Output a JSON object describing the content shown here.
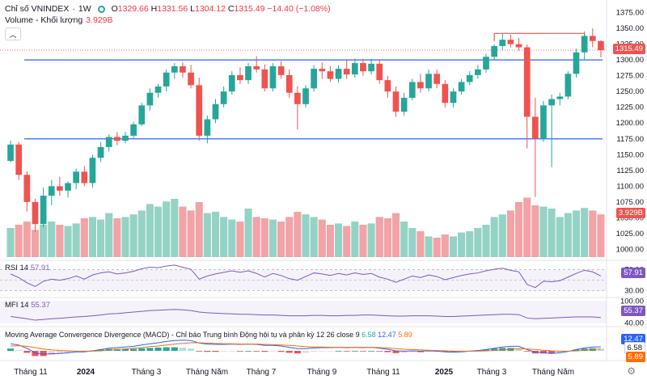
{
  "header": {
    "symbol": "Chỉ số VNINDEX",
    "interval": "1W",
    "ohlc": {
      "o_label": "O",
      "o": "1329.66",
      "h_label": "H",
      "h": "1331.56",
      "l_label": "L",
      "l": "1304.12",
      "c_label": "C",
      "c": "1315.49",
      "change": "−14.40 (−1.08%)"
    },
    "volume_label": "Volume - Khối lượng",
    "volume_value": "3.929B"
  },
  "colors": {
    "up": "#26a69a",
    "down": "#ef5350",
    "vol_up": "#95d2c6",
    "vol_down": "#f1a3a7",
    "hline": "#2962ff",
    "rsi": "#7e57c2",
    "macd": "#2962ff",
    "signal": "#ff6d00"
  },
  "price_axis": {
    "ticks": [
      "1375.00",
      "1350.00",
      "1325.00",
      "1300.00",
      "1275.00",
      "1250.00",
      "1225.00",
      "1200.00",
      "1175.00",
      "1150.00",
      "1125.00",
      "1100.00",
      "1075.00",
      "1050.00",
      "1025.00",
      "1000.00"
    ],
    "last_price": "1315.49",
    "volume_tag": "3.929B"
  },
  "time_axis": {
    "labels": [
      "Tháng 11",
      "2024",
      "Tháng 3",
      "Tháng Năm",
      "Tháng 7",
      "Tháng 9",
      "Tháng 11",
      "2025",
      "Tháng 3",
      "Tháng Năm"
    ]
  },
  "rsi": {
    "label": "RSI",
    "period": "14",
    "value": "57.91",
    "ticks": [
      "70.00",
      "30.00"
    ]
  },
  "mfi": {
    "label": "MFI",
    "period": "14",
    "value": "55.37",
    "ticks": [
      "100.00",
      "40.00"
    ]
  },
  "macd": {
    "label": "Moving Average Convergence Divergence (MACD) - Chỉ báo Trung bình Động hội tụ và phân kỳ",
    "params": "12 26 close 9",
    "hist": "6.58",
    "macd": "12.47",
    "signal": "5.89",
    "tag_macd": "12.47",
    "tag_hist": "6.58",
    "tag_signal": "5.89"
  },
  "chart_data": {
    "type": "candlestick",
    "title": "Chỉ số VNINDEX · 1W",
    "ylim": [
      990,
      1380
    ],
    "horizontal_lines": [
      1300,
      1175
    ],
    "candles": [
      {
        "o": 1140,
        "h": 1172,
        "l": 1138,
        "c": 1166
      },
      {
        "o": 1166,
        "h": 1170,
        "l": 1110,
        "c": 1118
      },
      {
        "o": 1118,
        "h": 1124,
        "l": 1060,
        "c": 1075
      },
      {
        "o": 1075,
        "h": 1080,
        "l": 1027,
        "c": 1040
      },
      {
        "o": 1040,
        "h": 1098,
        "l": 1035,
        "c": 1085
      },
      {
        "o": 1085,
        "h": 1110,
        "l": 1070,
        "c": 1100
      },
      {
        "o": 1100,
        "h": 1115,
        "l": 1085,
        "c": 1093
      },
      {
        "o": 1093,
        "h": 1108,
        "l": 1082,
        "c": 1105
      },
      {
        "o": 1105,
        "h": 1128,
        "l": 1095,
        "c": 1123
      },
      {
        "o": 1123,
        "h": 1132,
        "l": 1100,
        "c": 1105
      },
      {
        "o": 1105,
        "h": 1150,
        "l": 1098,
        "c": 1145
      },
      {
        "o": 1145,
        "h": 1170,
        "l": 1138,
        "c": 1162
      },
      {
        "o": 1162,
        "h": 1182,
        "l": 1155,
        "c": 1178
      },
      {
        "o": 1178,
        "h": 1186,
        "l": 1165,
        "c": 1172
      },
      {
        "o": 1172,
        "h": 1186,
        "l": 1168,
        "c": 1180
      },
      {
        "o": 1180,
        "h": 1202,
        "l": 1175,
        "c": 1198
      },
      {
        "o": 1198,
        "h": 1232,
        "l": 1195,
        "c": 1228
      },
      {
        "o": 1228,
        "h": 1255,
        "l": 1220,
        "c": 1248
      },
      {
        "o": 1248,
        "h": 1262,
        "l": 1240,
        "c": 1258
      },
      {
        "o": 1258,
        "h": 1285,
        "l": 1250,
        "c": 1280
      },
      {
        "o": 1280,
        "h": 1295,
        "l": 1270,
        "c": 1290
      },
      {
        "o": 1290,
        "h": 1296,
        "l": 1272,
        "c": 1280
      },
      {
        "o": 1280,
        "h": 1292,
        "l": 1255,
        "c": 1260
      },
      {
        "o": 1260,
        "h": 1272,
        "l": 1172,
        "c": 1180
      },
      {
        "o": 1180,
        "h": 1212,
        "l": 1168,
        "c": 1206
      },
      {
        "o": 1206,
        "h": 1238,
        "l": 1200,
        "c": 1230
      },
      {
        "o": 1230,
        "h": 1258,
        "l": 1225,
        "c": 1250
      },
      {
        "o": 1250,
        "h": 1282,
        "l": 1245,
        "c": 1276
      },
      {
        "o": 1276,
        "h": 1288,
        "l": 1262,
        "c": 1268
      },
      {
        "o": 1268,
        "h": 1295,
        "l": 1262,
        "c": 1290
      },
      {
        "o": 1290,
        "h": 1306,
        "l": 1280,
        "c": 1285
      },
      {
        "o": 1285,
        "h": 1293,
        "l": 1250,
        "c": 1255
      },
      {
        "o": 1255,
        "h": 1295,
        "l": 1250,
        "c": 1290
      },
      {
        "o": 1290,
        "h": 1298,
        "l": 1270,
        "c": 1276
      },
      {
        "o": 1276,
        "h": 1285,
        "l": 1240,
        "c": 1248
      },
      {
        "o": 1248,
        "h": 1258,
        "l": 1190,
        "c": 1230
      },
      {
        "o": 1230,
        "h": 1260,
        "l": 1225,
        "c": 1255
      },
      {
        "o": 1255,
        "h": 1292,
        "l": 1250,
        "c": 1286
      },
      {
        "o": 1286,
        "h": 1296,
        "l": 1270,
        "c": 1282
      },
      {
        "o": 1282,
        "h": 1290,
        "l": 1265,
        "c": 1270
      },
      {
        "o": 1270,
        "h": 1292,
        "l": 1264,
        "c": 1286
      },
      {
        "o": 1286,
        "h": 1300,
        "l": 1270,
        "c": 1277
      },
      {
        "o": 1277,
        "h": 1302,
        "l": 1272,
        "c": 1295
      },
      {
        "o": 1295,
        "h": 1302,
        "l": 1275,
        "c": 1282
      },
      {
        "o": 1282,
        "h": 1302,
        "l": 1277,
        "c": 1294
      },
      {
        "o": 1294,
        "h": 1300,
        "l": 1262,
        "c": 1268
      },
      {
        "o": 1268,
        "h": 1275,
        "l": 1240,
        "c": 1250
      },
      {
        "o": 1250,
        "h": 1258,
        "l": 1210,
        "c": 1218
      },
      {
        "o": 1218,
        "h": 1248,
        "l": 1212,
        "c": 1240
      },
      {
        "o": 1240,
        "h": 1270,
        "l": 1236,
        "c": 1265
      },
      {
        "o": 1265,
        "h": 1278,
        "l": 1248,
        "c": 1255
      },
      {
        "o": 1255,
        "h": 1285,
        "l": 1250,
        "c": 1278
      },
      {
        "o": 1278,
        "h": 1285,
        "l": 1255,
        "c": 1262
      },
      {
        "o": 1262,
        "h": 1268,
        "l": 1225,
        "c": 1232
      },
      {
        "o": 1232,
        "h": 1255,
        "l": 1225,
        "c": 1250
      },
      {
        "o": 1250,
        "h": 1270,
        "l": 1245,
        "c": 1265
      },
      {
        "o": 1265,
        "h": 1282,
        "l": 1260,
        "c": 1276
      },
      {
        "o": 1276,
        "h": 1292,
        "l": 1270,
        "c": 1285
      },
      {
        "o": 1285,
        "h": 1310,
        "l": 1280,
        "c": 1305
      },
      {
        "o": 1305,
        "h": 1325,
        "l": 1300,
        "c": 1322
      },
      {
        "o": 1322,
        "h": 1342,
        "l": 1315,
        "c": 1332
      },
      {
        "o": 1332,
        "h": 1340,
        "l": 1320,
        "c": 1325
      },
      {
        "o": 1325,
        "h": 1335,
        "l": 1315,
        "c": 1320
      },
      {
        "o": 1320,
        "h": 1325,
        "l": 1160,
        "c": 1210
      },
      {
        "o": 1210,
        "h": 1240,
        "l": 1083,
        "c": 1175
      },
      {
        "o": 1175,
        "h": 1235,
        "l": 1170,
        "c": 1228
      },
      {
        "o": 1228,
        "h": 1245,
        "l": 1130,
        "c": 1238
      },
      {
        "o": 1238,
        "h": 1248,
        "l": 1228,
        "c": 1242
      },
      {
        "o": 1242,
        "h": 1282,
        "l": 1238,
        "c": 1278
      },
      {
        "o": 1278,
        "h": 1318,
        "l": 1272,
        "c": 1312
      },
      {
        "o": 1312,
        "h": 1345,
        "l": 1300,
        "c": 1338
      },
      {
        "o": 1338,
        "h": 1350,
        "l": 1320,
        "c": 1330
      },
      {
        "o": 1329.66,
        "h": 1331.56,
        "l": 1304.12,
        "c": 1315.49
      }
    ],
    "volume_max": 1.0,
    "volume": [
      0.45,
      0.5,
      0.55,
      0.42,
      0.5,
      0.55,
      0.5,
      0.48,
      0.52,
      0.6,
      0.62,
      0.58,
      0.68,
      0.6,
      0.62,
      0.66,
      0.72,
      0.82,
      0.78,
      0.86,
      0.9,
      0.78,
      0.72,
      0.85,
      0.68,
      0.7,
      0.62,
      0.58,
      0.55,
      0.75,
      0.62,
      0.6,
      0.58,
      0.55,
      0.62,
      0.7,
      0.66,
      0.62,
      0.58,
      0.5,
      0.52,
      0.48,
      0.55,
      0.5,
      0.52,
      0.62,
      0.6,
      0.68,
      0.55,
      0.45,
      0.4,
      0.32,
      0.3,
      0.35,
      0.32,
      0.38,
      0.4,
      0.45,
      0.5,
      0.62,
      0.66,
      0.72,
      0.85,
      0.92,
      0.8,
      0.78,
      0.75,
      0.62,
      0.68,
      0.72,
      0.76,
      0.72,
      0.66
    ],
    "rsi": [
      62,
      55,
      45,
      38,
      48,
      52,
      50,
      53,
      58,
      52,
      60,
      64,
      66,
      62,
      64,
      67,
      72,
      75,
      74,
      77,
      79,
      75,
      71,
      52,
      58,
      62,
      65,
      68,
      65,
      68,
      63,
      56,
      63,
      59,
      53,
      50,
      57,
      64,
      62,
      59,
      63,
      60,
      64,
      61,
      63,
      56,
      52,
      46,
      52,
      58,
      55,
      60,
      57,
      51,
      55,
      59,
      62,
      64,
      68,
      71,
      73,
      69,
      66,
      42,
      36,
      48,
      47,
      49,
      56,
      63,
      69,
      66,
      58
    ],
    "mfi": [
      58,
      55,
      52,
      48,
      50,
      52,
      53,
      55,
      57,
      58,
      60,
      62,
      65,
      66,
      68,
      70,
      72,
      74,
      75,
      76,
      77,
      76,
      74,
      70,
      68,
      67,
      66,
      65,
      64,
      64,
      63,
      62,
      62,
      61,
      60,
      60,
      60,
      61,
      61,
      60,
      60,
      61,
      61,
      62,
      62,
      61,
      60,
      59,
      59,
      60,
      60,
      60,
      59,
      58,
      58,
      59,
      60,
      61,
      62,
      63,
      64,
      64,
      63,
      54,
      52,
      53,
      54,
      55,
      56,
      57,
      57,
      57,
      55
    ],
    "macd_line": [
      22,
      18,
      8,
      -6,
      -10,
      -9,
      -8,
      -6,
      -3,
      -3,
      0,
      4,
      8,
      10,
      12,
      14,
      18,
      22,
      25,
      29,
      32,
      33,
      32,
      24,
      21,
      20,
      20,
      21,
      20,
      21,
      20,
      17,
      17,
      15,
      11,
      7,
      7,
      9,
      10,
      10,
      11,
      10,
      11,
      10,
      11,
      8,
      5,
      0,
      -1,
      0,
      -1,
      0,
      -1,
      -3,
      -4,
      -3,
      -1,
      1,
      4,
      8,
      12,
      14,
      14,
      4,
      -4,
      -6,
      -8,
      -6,
      -2,
      4,
      9,
      12,
      12.47
    ],
    "signal_line": [
      15,
      16,
      14,
      10,
      6,
      3,
      1,
      0,
      -1,
      -1,
      -1,
      0,
      2,
      4,
      6,
      8,
      10,
      13,
      15,
      18,
      21,
      23,
      25,
      25,
      24,
      23,
      22,
      22,
      21,
      21,
      21,
      20,
      19,
      18,
      17,
      15,
      13,
      12,
      12,
      11,
      11,
      11,
      11,
      11,
      11,
      10,
      9,
      7,
      5,
      4,
      3,
      2,
      1,
      0,
      -1,
      -1,
      -1,
      -1,
      0,
      1,
      3,
      5,
      7,
      6,
      4,
      2,
      0,
      -1,
      -1,
      0,
      2,
      4,
      5.89
    ]
  }
}
